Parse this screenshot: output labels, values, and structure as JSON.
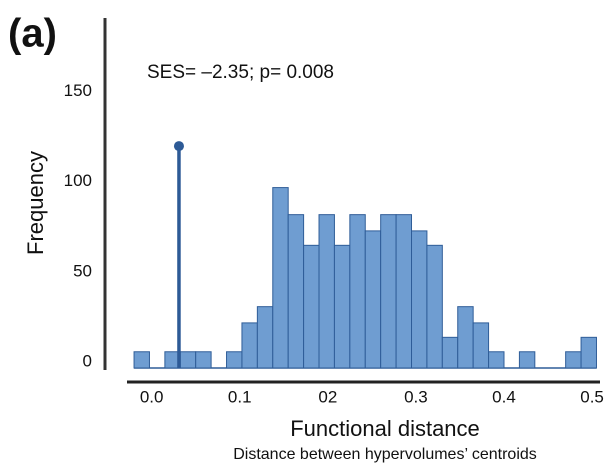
{
  "chart_data": {
    "type": "histogram",
    "panel_label": "(a)",
    "annotation": "SES= –2.35; p= 0.008",
    "xlabel": "Functional distance",
    "subtitle": "Distance between hypervolumes’ centroids",
    "ylabel": "Frequency",
    "bins": [
      -0.02,
      -0.0025,
      0.015,
      0.0325,
      0.05,
      0.0675,
      0.085,
      0.1025,
      0.12,
      0.1375,
      0.155,
      0.1725,
      0.19,
      0.2075,
      0.225,
      0.2425,
      0.26,
      0.2775,
      0.295,
      0.3125,
      0.33,
      0.3475,
      0.365,
      0.3825,
      0.4,
      0.4175,
      0.435,
      0.4525,
      0.47,
      0.4875,
      0.505
    ],
    "values": [
      9,
      0,
      9,
      9,
      9,
      0,
      9,
      25,
      34,
      100,
      85,
      68,
      85,
      68,
      85,
      76,
      85,
      85,
      76,
      68,
      17,
      34,
      25,
      9,
      0,
      9,
      0,
      0,
      9,
      17
    ],
    "color": "#6f9dd1",
    "edge_color": "#2f5d98",
    "observed": {
      "x": 0.031,
      "y": 123,
      "color": "#2d5a96"
    },
    "xlim": [
      -0.028,
      0.509
    ],
    "ylim": [
      0,
      194
    ],
    "xticks": [
      {
        "value": 0,
        "label": "0.0"
      },
      0.1,
      {
        "value": 0.2,
        "label": "02"
      },
      0.3,
      0.4,
      0.5
    ],
    "yticks": [
      0,
      50,
      100,
      150
    ]
  }
}
